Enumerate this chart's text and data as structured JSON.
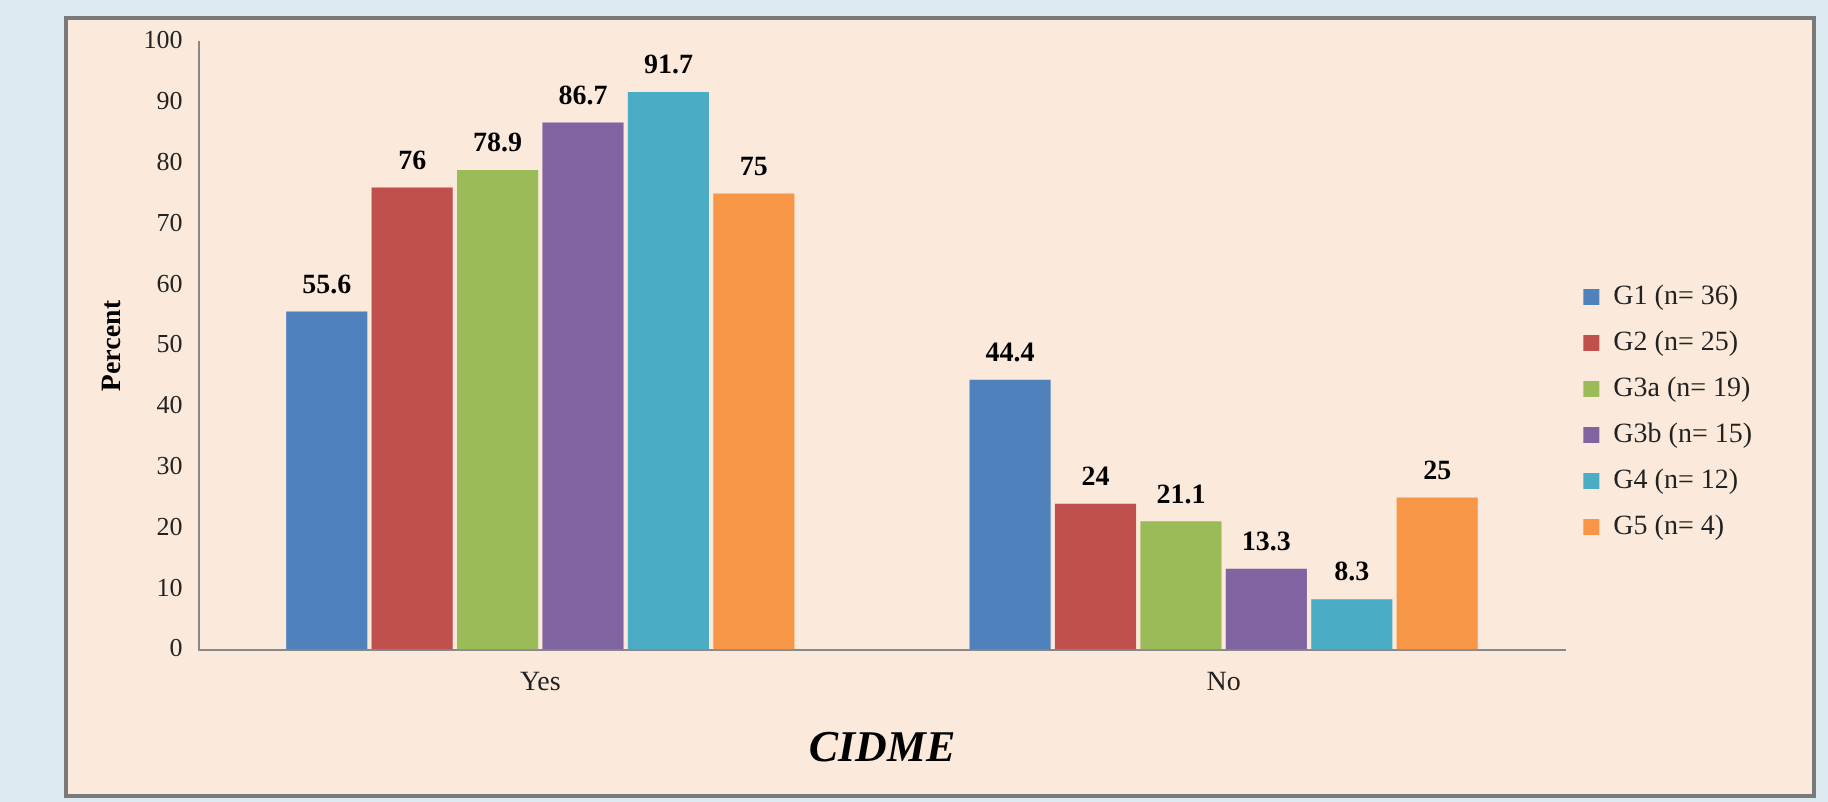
{
  "chart_data": {
    "type": "bar",
    "xlabel": "CIDME",
    "ylabel": "Percent",
    "categories": [
      "Yes",
      "No"
    ],
    "series": [
      {
        "name": "G1 (n= 36)",
        "color": "#4f81bd",
        "values": [
          55.6,
          44.4
        ]
      },
      {
        "name": "G2 (n= 25)",
        "color": "#c0504d",
        "values": [
          76,
          24
        ]
      },
      {
        "name": "G3a (n= 19)",
        "color": "#9bbb59",
        "values": [
          78.9,
          21.1
        ]
      },
      {
        "name": "G3b (n= 15)",
        "color": "#8064a2",
        "values": [
          86.7,
          13.3
        ]
      },
      {
        "name": "G4 (n= 12)",
        "color": "#4bacc6",
        "values": [
          91.7,
          8.3
        ]
      },
      {
        "name": "G5 (n= 4)",
        "color": "#f79646",
        "values": [
          75,
          25
        ]
      }
    ],
    "ylim": [
      0,
      100
    ],
    "yticks": [
      0,
      10,
      20,
      30,
      40,
      50,
      60,
      70,
      80,
      90,
      100
    ],
    "grid": false,
    "legend": "right",
    "data_labels": true
  }
}
